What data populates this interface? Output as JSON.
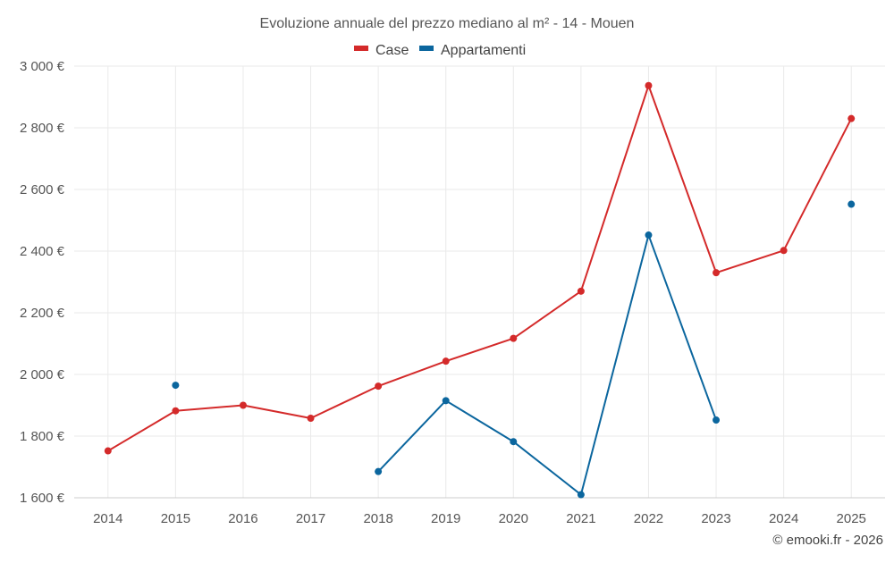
{
  "chart_data": {
    "type": "line",
    "title": "Evoluzione annuale del prezzo mediano al m² - 14 - Mouen",
    "categories": [
      "2014",
      "2015",
      "2016",
      "2017",
      "2018",
      "2019",
      "2020",
      "2021",
      "2022",
      "2023",
      "2024",
      "2025"
    ],
    "y_ticks": [
      "1 600 €",
      "1 800 €",
      "2 000 €",
      "2 200 €",
      "2 400 €",
      "2 600 €",
      "2 800 €",
      "3 000 €"
    ],
    "ylim": [
      1600,
      3000
    ],
    "ytick_values": [
      1600,
      1800,
      2000,
      2200,
      2400,
      2600,
      2800,
      3000
    ],
    "series": [
      {
        "name": "Case",
        "color": "#d42a2a",
        "values": [
          1752,
          1882,
          1900,
          1858,
          1962,
          2043,
          2117,
          2270,
          2937,
          2330,
          2402,
          2830
        ]
      },
      {
        "name": "Appartamenti",
        "color": "#0b669e",
        "values": [
          null,
          1965,
          null,
          null,
          1685,
          1915,
          1782,
          1610,
          2452,
          1852,
          null,
          2552
        ]
      }
    ],
    "credit": "© emooki.fr - 2026"
  }
}
